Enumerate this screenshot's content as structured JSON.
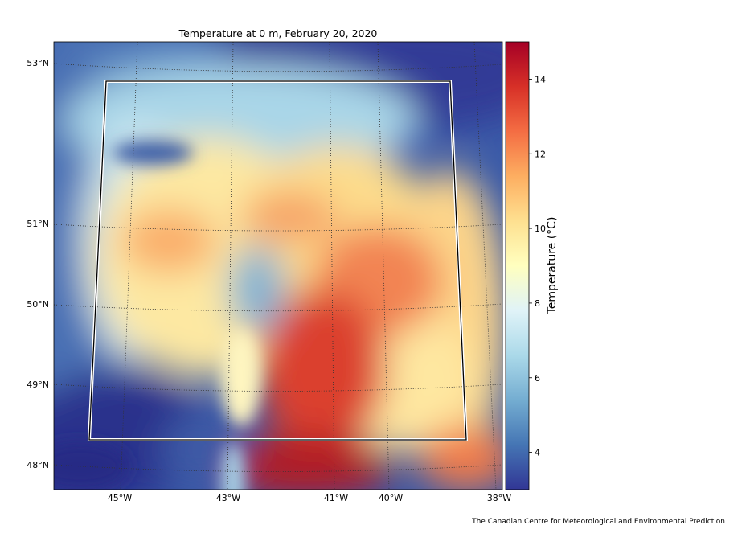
{
  "title": "Temperature  at 0 m, February 20, 2020",
  "colorbar": {
    "label": "Temperature (°C)",
    "ticks": [
      "4",
      "6",
      "8",
      "10",
      "12",
      "14"
    ],
    "range": [
      3,
      15
    ],
    "colormap": "RdYlBu_r",
    "colors": [
      "#313695",
      "#4575b4",
      "#74add1",
      "#abd9e9",
      "#e0f3f8",
      "#ffffbf",
      "#fee090",
      "#fdae61",
      "#f46d43",
      "#d73027",
      "#a50026"
    ]
  },
  "lat_labels": [
    "53°N",
    "51°N",
    "50°N",
    "49°N",
    "48°N"
  ],
  "lon_labels": [
    "45°W",
    "43°W",
    "41°W",
    "40°W",
    "38°W"
  ],
  "credit": "The Canadian Centre for Meteorological and Environmental Prediction",
  "domain_box_color": "#ffffff"
}
